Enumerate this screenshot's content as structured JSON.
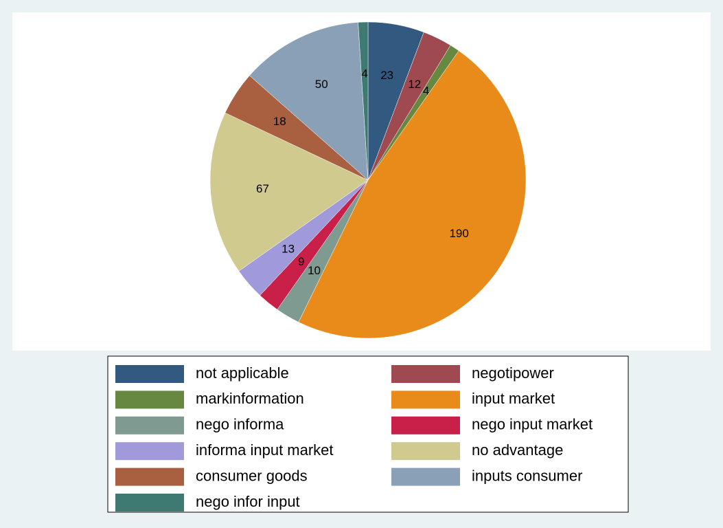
{
  "chart_data": {
    "type": "pie",
    "categories": [
      "not applicable",
      "negotipower",
      "markinformation",
      "input market",
      "nego informa",
      "nego input market",
      "informa input market",
      "no advantage",
      "consumer goods",
      "inputs consumer",
      "nego infor input"
    ],
    "values": [
      23,
      12,
      4,
      190,
      10,
      9,
      13,
      67,
      18,
      50,
      4
    ],
    "colors": [
      "#325a80",
      "#9e4a50",
      "#668840",
      "#e88b1a",
      "#7f9a90",
      "#c9204a",
      "#a09ada",
      "#d0ca8e",
      "#a86040",
      "#8aa0b6",
      "#3e7a72"
    ],
    "legend": "bottom"
  }
}
